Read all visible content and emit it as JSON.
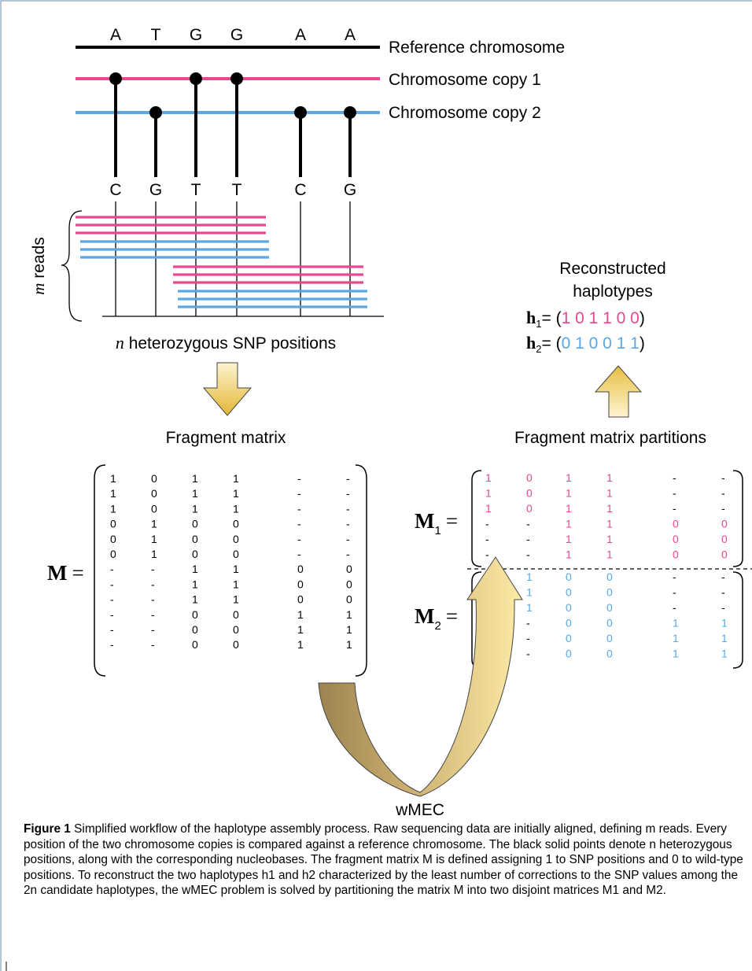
{
  "colors": {
    "copy1": "#e8478f",
    "copy2": "#5aa7e6",
    "black": "#000000",
    "arrow_light": "#fbe8a6",
    "arrow_dark": "#e3b635",
    "curve_dark": "#a88d5a",
    "curve_light": "#fde9a0",
    "border": "#9ab3c7"
  },
  "chromosomes": {
    "reference_label": "Reference chromosome",
    "copy1_label": "Chromosome copy 1",
    "copy2_label": "Chromosome copy 2",
    "reference_bases": [
      "A",
      "T",
      "G",
      "G",
      "A",
      "A"
    ],
    "alt_bases": [
      "C",
      "G",
      "T",
      "T",
      "C",
      "G"
    ]
  },
  "reads": {
    "axis_label_var": "m",
    "axis_label_text": " reads"
  },
  "snp": {
    "label_var": "n",
    "label_text": " heterozygous SNP positions"
  },
  "fragment_matrix": {
    "title": "Fragment matrix",
    "symbol": "M",
    "equals": "=",
    "rows": [
      [
        "1",
        "0",
        "1",
        "1",
        "-",
        "-"
      ],
      [
        "1",
        "0",
        "1",
        "1",
        "-",
        "-"
      ],
      [
        "1",
        "0",
        "1",
        "1",
        "-",
        "-"
      ],
      [
        "0",
        "1",
        "0",
        "0",
        "-",
        "-"
      ],
      [
        "0",
        "1",
        "0",
        "0",
        "-",
        "-"
      ],
      [
        "0",
        "1",
        "0",
        "0",
        "-",
        "-"
      ],
      [
        "-",
        "-",
        "1",
        "1",
        "0",
        "0"
      ],
      [
        "-",
        "-",
        "1",
        "1",
        "0",
        "0"
      ],
      [
        "-",
        "-",
        "1",
        "1",
        "0",
        "0"
      ],
      [
        "-",
        "-",
        "0",
        "0",
        "1",
        "1"
      ],
      [
        "-",
        "-",
        "0",
        "0",
        "1",
        "1"
      ],
      [
        "-",
        "-",
        "0",
        "0",
        "1",
        "1"
      ]
    ]
  },
  "partitions": {
    "title": "Fragment matrix partitions",
    "m1_symbol": "M",
    "m1_sub": "1",
    "m2_symbol": "M",
    "m2_sub": "2",
    "equals": "=",
    "m1_rows": [
      [
        "1",
        "0",
        "1",
        "1",
        "-",
        "-"
      ],
      [
        "1",
        "0",
        "1",
        "1",
        "-",
        "-"
      ],
      [
        "1",
        "0",
        "1",
        "1",
        "-",
        "-"
      ],
      [
        "-",
        "-",
        "1",
        "1",
        "0",
        "0"
      ],
      [
        "-",
        "-",
        "1",
        "1",
        "0",
        "0"
      ],
      [
        "-",
        "-",
        "1",
        "1",
        "0",
        "0"
      ]
    ],
    "m2_rows": [
      [
        "0",
        "1",
        "0",
        "0",
        "-",
        "-"
      ],
      [
        "0",
        "1",
        "0",
        "0",
        "-",
        "-"
      ],
      [
        "0",
        "1",
        "0",
        "0",
        "-",
        "-"
      ],
      [
        "-",
        "-",
        "0",
        "0",
        "1",
        "1"
      ],
      [
        "-",
        "-",
        "0",
        "0",
        "1",
        "1"
      ],
      [
        "-",
        "-",
        "0",
        "0",
        "1",
        "1"
      ]
    ]
  },
  "haplotypes": {
    "title_line1": "Reconstructed",
    "title_line2": "haplotypes",
    "h1_symbol": "h",
    "h1_sub": "1",
    "h1_values": "1 0 1 1 0 0",
    "h2_symbol": "h",
    "h2_sub": "2",
    "h2_values": "0 1 0 0 1 1",
    "equals_open": "= (",
    "close": ")"
  },
  "wmec_label": "wMEC",
  "caption": {
    "label": "Figure 1",
    "text": " Simplified workflow of the haplotype assembly process. Raw sequencing data are initially aligned, defining m reads. Every position of the two chromosome copies is compared against a reference chromosome. The black solid points denote n heterozygous positions, along with the corresponding nucleobases. The fragment matrix M is defined assigning 1 to SNP positions and 0 to wild-type positions. To reconstruct the two haplotypes h1 and h2 characterized by the least number of corrections to the SNP values among the 2n candidate haplotypes, the wMEC problem is solved by partitioning the matrix M into two disjoint matrices M1 and M2."
  }
}
